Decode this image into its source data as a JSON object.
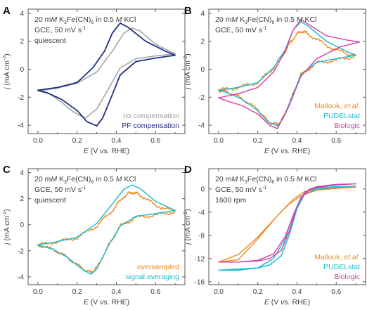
{
  "chart_data": [
    {
      "type": "line",
      "panel": "A",
      "annotations": [
        "20 mM K3Fe(CN)6 in 0.5 M KCl",
        "GCE, 50 mV s-1",
        "quiescent"
      ],
      "xlabel": "E (V vs. RHE)",
      "ylabel": "j (mA cm-2)",
      "xlim": [
        -0.05,
        0.75
      ],
      "ylim": [
        -4.6,
        4.3
      ],
      "xticks": [
        0.0,
        0.2,
        0.4,
        0.6
      ],
      "yticks": [
        -4,
        -2,
        0,
        2,
        4
      ],
      "legend_position": "bottom-right",
      "series": [
        {
          "name": "no compensation",
          "color": "#9a9a9a",
          "stroke_width": 1.4,
          "x": [
            0.0,
            0.1,
            0.2,
            0.3,
            0.38,
            0.44,
            0.48,
            0.52,
            0.6,
            0.7,
            0.6,
            0.5,
            0.42,
            0.36,
            0.3,
            0.24,
            0.18,
            0.12,
            0.06,
            0.0
          ],
          "y": [
            -1.55,
            -1.35,
            -1.0,
            -0.2,
            1.3,
            2.6,
            2.95,
            2.75,
            1.8,
            1.1,
            0.95,
            0.75,
            0.1,
            -1.4,
            -2.85,
            -3.5,
            -3.05,
            -2.35,
            -1.75,
            -1.55
          ]
        },
        {
          "name": "PF compensation",
          "color": "#1f2d80",
          "stroke_width": 1.8,
          "x": [
            0.0,
            0.1,
            0.2,
            0.28,
            0.34,
            0.38,
            0.42,
            0.46,
            0.55,
            0.65,
            0.7,
            0.6,
            0.5,
            0.42,
            0.38,
            0.33,
            0.3,
            0.25,
            0.2,
            0.12,
            0.05,
            0.0
          ],
          "y": [
            -1.5,
            -1.3,
            -0.95,
            0.1,
            1.3,
            2.6,
            3.3,
            3.0,
            2.0,
            1.3,
            1.0,
            0.8,
            0.55,
            -0.4,
            -1.8,
            -3.5,
            -4.05,
            -3.75,
            -2.95,
            -2.15,
            -1.7,
            -1.5
          ]
        }
      ]
    },
    {
      "type": "line",
      "panel": "B",
      "annotations": [
        "20 mM K3Fe(CN)6 in 0.5 M KCl",
        "GCE, 50 mV s-1"
      ],
      "xlabel": "E (V vs. RHE)",
      "ylabel": "j (mA cm-2)",
      "xlim": [
        -0.05,
        0.75
      ],
      "ylim": [
        -4.6,
        4.3
      ],
      "xticks": [
        0.0,
        0.2,
        0.4,
        0.6
      ],
      "yticks": [
        -4,
        -2,
        0,
        2,
        4
      ],
      "legend_position": "bottom-right",
      "series": [
        {
          "name": "Mallouk, et al.",
          "color": "#f08a1e",
          "stroke_width": 1.4,
          "noisy": true,
          "x": [
            0.0,
            0.1,
            0.2,
            0.28,
            0.34,
            0.38,
            0.42,
            0.46,
            0.55,
            0.65,
            0.7,
            0.6,
            0.5,
            0.42,
            0.38,
            0.33,
            0.3,
            0.25,
            0.2,
            0.12,
            0.05,
            0.0
          ],
          "y": [
            -1.5,
            -1.3,
            -0.95,
            0.1,
            1.3,
            2.2,
            2.75,
            2.5,
            1.7,
            1.1,
            0.95,
            0.65,
            0.45,
            -0.4,
            -1.8,
            -3.5,
            -4.0,
            -3.7,
            -2.9,
            -2.1,
            -1.65,
            -1.5
          ]
        },
        {
          "name": "PUDELstat",
          "color": "#20bdd0",
          "stroke_width": 1.5,
          "x": [
            0.0,
            0.1,
            0.2,
            0.28,
            0.34,
            0.38,
            0.42,
            0.46,
            0.55,
            0.65,
            0.7,
            0.6,
            0.5,
            0.42,
            0.38,
            0.33,
            0.3,
            0.25,
            0.2,
            0.12,
            0.05,
            0.0
          ],
          "y": [
            -1.5,
            -1.3,
            -0.95,
            0.1,
            1.4,
            2.8,
            3.4,
            3.05,
            2.0,
            1.3,
            1.0,
            0.75,
            0.5,
            -0.4,
            -1.8,
            -3.5,
            -4.05,
            -3.75,
            -2.95,
            -2.15,
            -1.7,
            -1.5
          ]
        },
        {
          "name": "Biologic",
          "color": "#d83aa6",
          "stroke_width": 1.4,
          "x": [
            0.0,
            0.1,
            0.2,
            0.28,
            0.34,
            0.38,
            0.42,
            0.46,
            0.55,
            0.65,
            0.72,
            0.62,
            0.5,
            0.42,
            0.36,
            0.3,
            0.26,
            0.2,
            0.12,
            0.05,
            0.0
          ],
          "y": [
            -2.05,
            -1.75,
            -1.3,
            -0.2,
            1.3,
            2.8,
            3.55,
            3.2,
            2.4,
            2.1,
            1.95,
            1.6,
            0.75,
            -0.5,
            -2.6,
            -4.25,
            -4.0,
            -3.2,
            -2.6,
            -2.3,
            -2.05
          ]
        }
      ]
    },
    {
      "type": "line",
      "panel": "C",
      "annotations": [
        "20 mM K3Fe(CN)6 in 0.5 M KCl",
        "GCE, 50 mV s-1",
        "quiescent"
      ],
      "xlabel": "E (V vs. RHE)",
      "ylabel": "j (mA cm-2)",
      "xlim": [
        -0.05,
        0.75
      ],
      "ylim": [
        -4.6,
        4.3
      ],
      "xticks": [
        0.0,
        0.2,
        0.4,
        0.6
      ],
      "yticks": [
        -4,
        -2,
        0,
        2,
        4
      ],
      "legend_position": "bottom-right",
      "series": [
        {
          "name": "oversampled",
          "color": "#f08a1e",
          "stroke_width": 1.4,
          "noisy": true,
          "x": [
            0.0,
            0.1,
            0.2,
            0.3,
            0.38,
            0.44,
            0.48,
            0.52,
            0.6,
            0.7,
            0.6,
            0.5,
            0.42,
            0.36,
            0.3,
            0.27,
            0.22,
            0.15,
            0.08,
            0.0
          ],
          "y": [
            -1.55,
            -1.3,
            -1.0,
            -0.1,
            1.1,
            2.2,
            2.5,
            2.3,
            1.5,
            1.0,
            0.75,
            0.55,
            -0.1,
            -1.6,
            -3.3,
            -3.7,
            -3.3,
            -2.5,
            -1.9,
            -1.55
          ]
        },
        {
          "name": "signal averaging",
          "color": "#20bdd0",
          "stroke_width": 1.5,
          "x": [
            0.0,
            0.1,
            0.2,
            0.3,
            0.38,
            0.44,
            0.48,
            0.52,
            0.6,
            0.7,
            0.6,
            0.5,
            0.42,
            0.36,
            0.3,
            0.27,
            0.22,
            0.15,
            0.08,
            0.0
          ],
          "y": [
            -1.55,
            -1.3,
            -0.95,
            0.1,
            1.6,
            2.75,
            3.05,
            2.8,
            1.8,
            1.1,
            0.85,
            0.65,
            -0.1,
            -1.6,
            -3.4,
            -3.8,
            -3.35,
            -2.5,
            -1.9,
            -1.55
          ]
        }
      ]
    },
    {
      "type": "line",
      "panel": "D",
      "annotations": [
        "20 mM K3Fe(CN)6 in 0.5 M KCl",
        "GCE, 50 mV s-1",
        "1600 rpm"
      ],
      "xlabel": "E (V vs. RHE)",
      "ylabel": "j (mA cm-2)",
      "xlim": [
        -0.05,
        0.75
      ],
      "ylim": [
        -16.5,
        3.5
      ],
      "xticks": [
        0.0,
        0.2,
        0.4,
        0.6
      ],
      "yticks": [
        -16,
        -12,
        -8,
        -4,
        0
      ],
      "legend_position": "bottom-right",
      "series": [
        {
          "name": "Mallouk, et al.",
          "color": "#f08a1e",
          "stroke_width": 1.4,
          "x": [
            0.0,
            0.1,
            0.2,
            0.3,
            0.38,
            0.44,
            0.5,
            0.6,
            0.7,
            0.6,
            0.5,
            0.42,
            0.36,
            0.3,
            0.2,
            0.1,
            0.0
          ],
          "y": [
            -12.6,
            -11.3,
            -8.3,
            -4.6,
            -1.8,
            -0.4,
            0.0,
            0.2,
            0.3,
            0.1,
            -0.2,
            -1.2,
            -2.6,
            -4.6,
            -8.6,
            -12.2,
            -12.6
          ]
        },
        {
          "name": "PUDELstat",
          "color": "#20bdd0",
          "stroke_width": 1.5,
          "x": [
            0.0,
            0.1,
            0.2,
            0.28,
            0.34,
            0.38,
            0.42,
            0.46,
            0.5,
            0.6,
            0.7,
            0.6,
            0.5,
            0.44,
            0.4,
            0.36,
            0.32,
            0.26,
            0.2,
            0.1,
            0.0
          ],
          "y": [
            -14.0,
            -14.0,
            -13.6,
            -12.0,
            -8.6,
            -4.6,
            -1.5,
            -0.2,
            0.2,
            0.4,
            0.5,
            0.3,
            0.0,
            -0.8,
            -3.4,
            -8.0,
            -11.5,
            -13.1,
            -13.6,
            -13.8,
            -14.0
          ]
        },
        {
          "name": "Biologic",
          "color": "#d83aa6",
          "stroke_width": 1.4,
          "x": [
            0.0,
            0.1,
            0.2,
            0.28,
            0.34,
            0.38,
            0.42,
            0.46,
            0.5,
            0.6,
            0.7,
            0.6,
            0.5,
            0.44,
            0.4,
            0.36,
            0.32,
            0.26,
            0.2,
            0.1,
            0.0
          ],
          "y": [
            -12.6,
            -12.6,
            -12.3,
            -11.2,
            -8.2,
            -4.6,
            -1.6,
            -0.1,
            0.4,
            0.8,
            0.9,
            0.7,
            0.3,
            -0.5,
            -3.0,
            -7.4,
            -10.6,
            -12.0,
            -12.4,
            -12.6,
            -12.6
          ]
        }
      ]
    }
  ]
}
